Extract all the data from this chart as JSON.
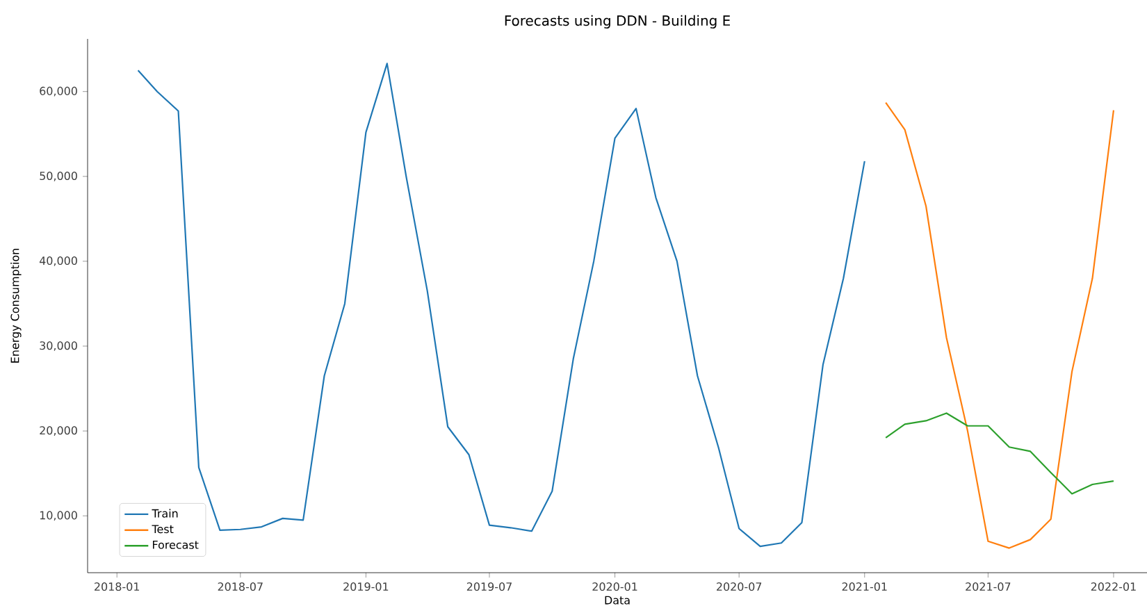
{
  "chart_data": {
    "type": "line",
    "title": "Forecasts using DDN - Building E",
    "xlabel": "Data",
    "ylabel": "Energy Consumption",
    "xlim": [
      "2017-11-19",
      "2022-02-19"
    ],
    "ylim": [
      3300,
      66200
    ],
    "xticks": [
      "2018-01",
      "2018-07",
      "2019-01",
      "2019-07",
      "2020-01",
      "2020-07",
      "2021-01",
      "2021-07",
      "2022-01"
    ],
    "yticks": [
      {
        "value": 10000,
        "label": "10,000"
      },
      {
        "value": 20000,
        "label": "20,000"
      },
      {
        "value": 30000,
        "label": "30,000"
      },
      {
        "value": 40000,
        "label": "40,000"
      },
      {
        "value": 50000,
        "label": "50,000"
      },
      {
        "value": 60000,
        "label": "60,000"
      }
    ],
    "legend": "bottom left",
    "grid": false,
    "series": [
      {
        "name": "Train",
        "color": "#1f77b4",
        "x": [
          "2018-02",
          "2018-03",
          "2018-04",
          "2018-05",
          "2018-06",
          "2018-07",
          "2018-08",
          "2018-09",
          "2018-10",
          "2018-11",
          "2018-12",
          "2019-01",
          "2019-02",
          "2019-03",
          "2019-04",
          "2019-05",
          "2019-06",
          "2019-07",
          "2019-08",
          "2019-09",
          "2019-10",
          "2019-11",
          "2019-12",
          "2020-01",
          "2020-02",
          "2020-03",
          "2020-04",
          "2020-05",
          "2020-06",
          "2020-07",
          "2020-08",
          "2020-09",
          "2020-10",
          "2020-11",
          "2020-12",
          "2021-01"
        ],
        "values": [
          62500,
          60000,
          57700,
          15700,
          8300,
          8400,
          8700,
          9700,
          9500,
          26500,
          35000,
          55200,
          63300,
          50000,
          36500,
          20500,
          17200,
          8900,
          8600,
          8200,
          12900,
          28500,
          40000,
          54500,
          58000,
          47500,
          40000,
          26500,
          18000,
          8500,
          6400,
          6800,
          9200,
          27800,
          38000,
          51800
        ]
      },
      {
        "name": "Test",
        "color": "#ff7f0e",
        "x": [
          "2021-02",
          "2021-03",
          "2021-04",
          "2021-05",
          "2021-06",
          "2021-07",
          "2021-08",
          "2021-09",
          "2021-10",
          "2021-11",
          "2021-12",
          "2022-01"
        ],
        "values": [
          58700,
          55500,
          46500,
          31000,
          20000,
          7000,
          6200,
          7200,
          9600,
          27000,
          38000,
          57800
        ]
      },
      {
        "name": "Forecast",
        "color": "#2ca02c",
        "x": [
          "2021-02",
          "2021-03",
          "2021-04",
          "2021-05",
          "2021-06",
          "2021-07",
          "2021-08",
          "2021-09",
          "2021-10",
          "2021-11",
          "2021-12",
          "2022-01"
        ],
        "values": [
          19200,
          20800,
          21200,
          22100,
          20600,
          20600,
          18100,
          17600,
          15100,
          12600,
          13700,
          14100
        ]
      }
    ]
  }
}
